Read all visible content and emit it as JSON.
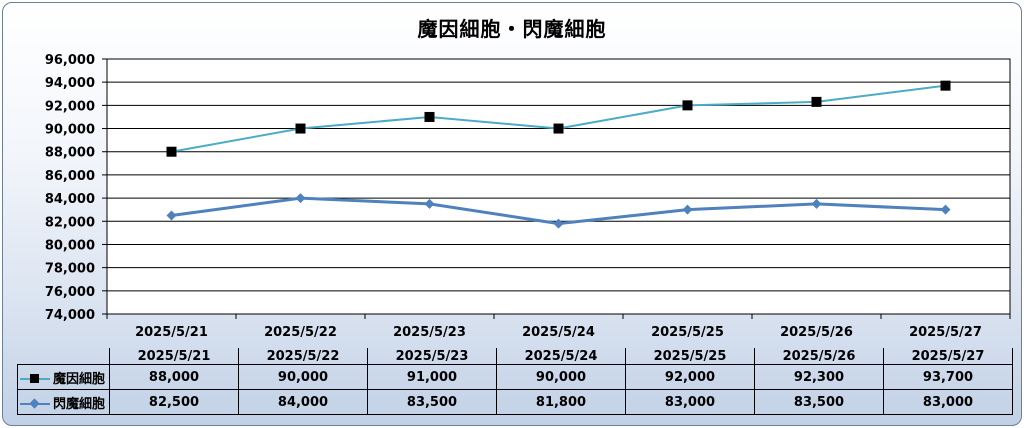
{
  "chart_data": {
    "type": "line",
    "title": "魔因細胞・閃魔細胞",
    "categories": [
      "2025/5/21",
      "2025/5/22",
      "2025/5/23",
      "2025/5/24",
      "2025/5/25",
      "2025/5/26",
      "2025/5/27"
    ],
    "ylim": [
      74000,
      96000
    ],
    "yticks": [
      "74,000",
      "76,000",
      "78,000",
      "80,000",
      "82,000",
      "84,000",
      "86,000",
      "88,000",
      "90,000",
      "92,000",
      "94,000",
      "96,000"
    ],
    "grid": true,
    "legend": "data-table",
    "series": [
      {
        "name": "魔因細胞",
        "values": [
          88000,
          90000,
          91000,
          90000,
          92000,
          92300,
          93700
        ],
        "labels": [
          "88,000",
          "90,000",
          "91,000",
          "90,000",
          "92,000",
          "92,300",
          "93,700"
        ],
        "color": "#4bacc6",
        "marker": "square",
        "marker_color": "#000000"
      },
      {
        "name": "閃魔細胞",
        "values": [
          82500,
          84000,
          83500,
          81800,
          83000,
          83500,
          83000
        ],
        "labels": [
          "82,500",
          "84,000",
          "83,500",
          "81,800",
          "83,000",
          "83,500",
          "83,000"
        ],
        "color": "#4f81bd",
        "marker": "diamond",
        "marker_color": "#4f81bd"
      }
    ]
  }
}
